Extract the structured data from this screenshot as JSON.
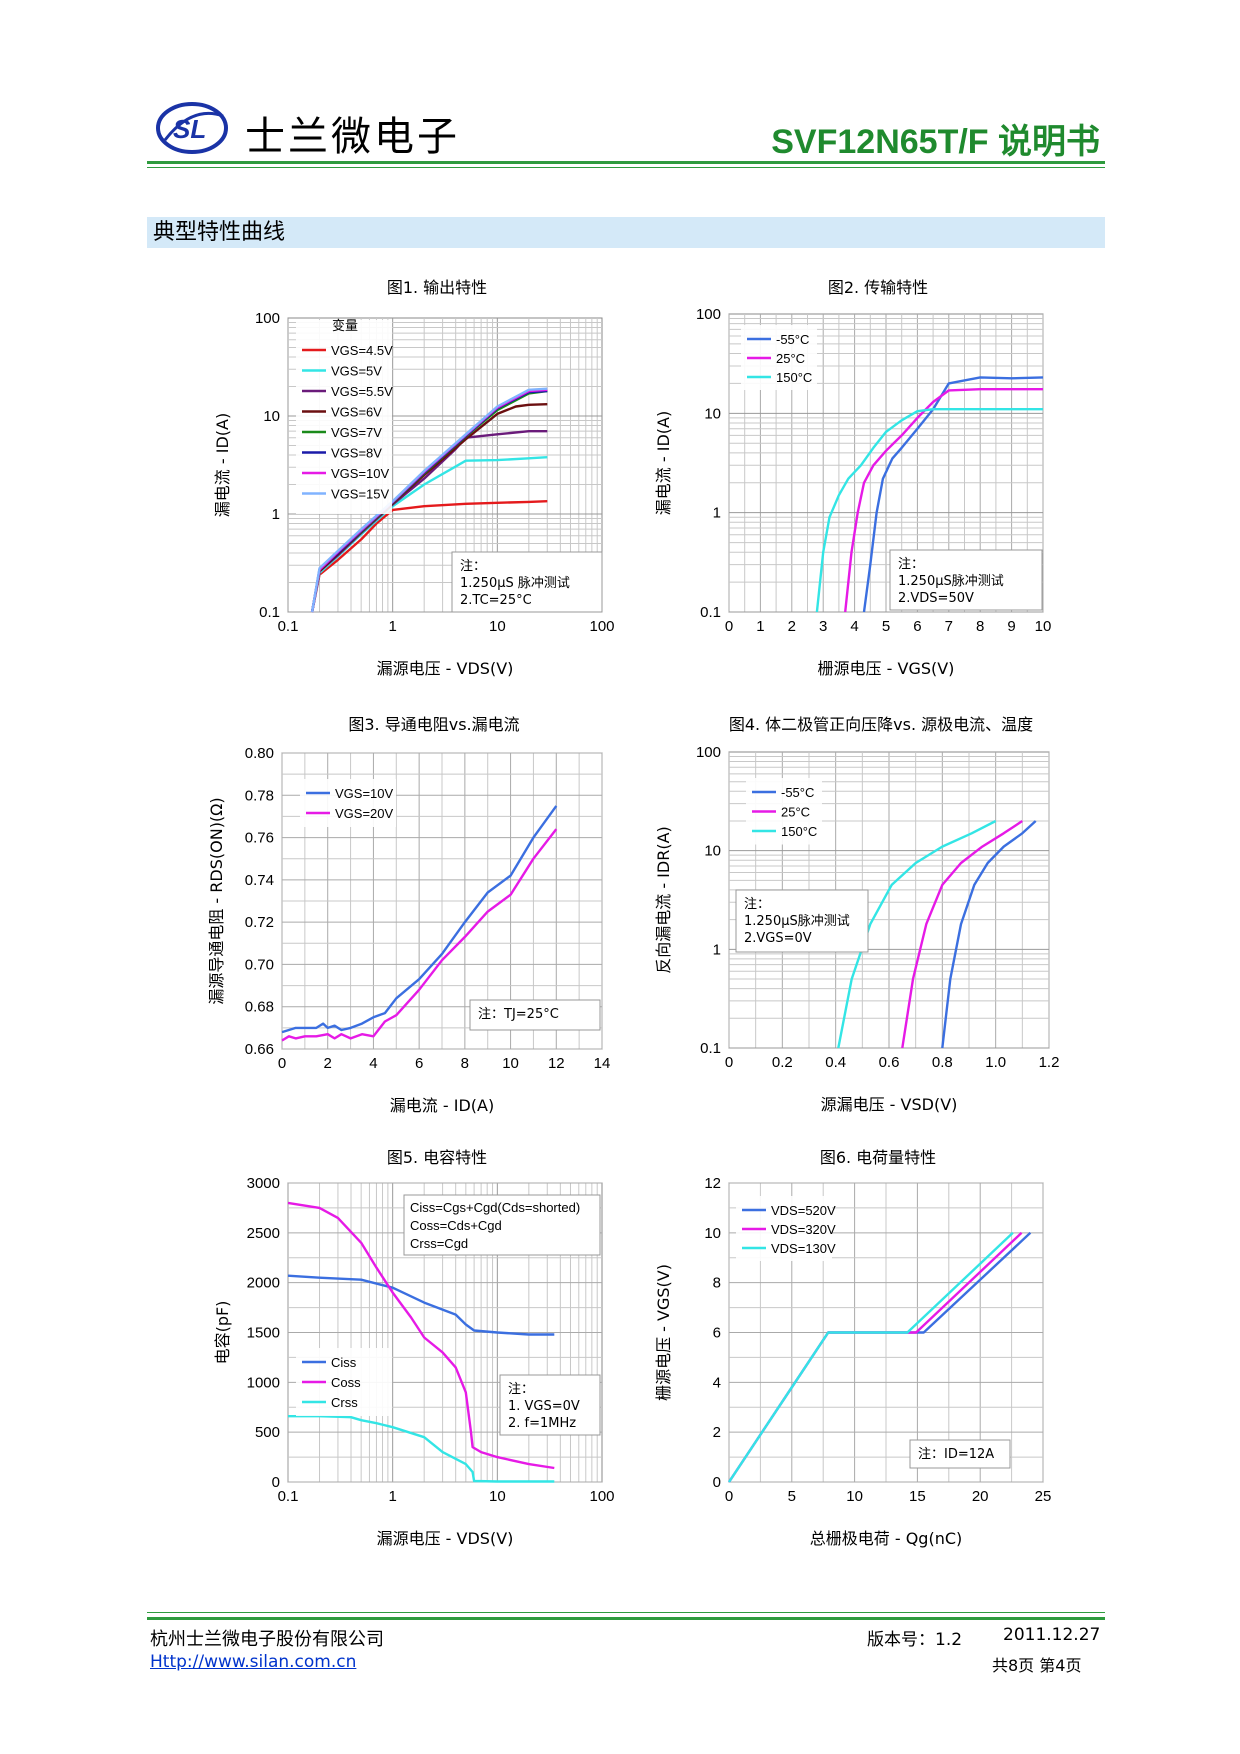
{
  "header": {
    "logo_text": "SL",
    "company": "士兰微电子",
    "doc_title": "SVF12N65T/F 说明书",
    "colors": {
      "green": "#1f8a2e",
      "logo_blue": "#1a33a6"
    }
  },
  "section_title": "典型特性曲线",
  "chart_data": [
    {
      "id": "fig1",
      "type": "line",
      "title": "图1. 输出特性",
      "xlabel": "漏源电压 - VDS(V)",
      "ylabel": "漏电流 - ID(A)",
      "xscale": "log",
      "yscale": "log",
      "xlim": [
        0.1,
        100
      ],
      "ylim": [
        0.1,
        100
      ],
      "xticks": [
        "0.1",
        "1",
        "10",
        "100"
      ],
      "yticks": [
        "0.1",
        "1",
        "10",
        "100"
      ],
      "legend_title": "变量",
      "series": [
        {
          "name": "VGS=4.5V",
          "color": "#e41a1c",
          "x": [
            0.17,
            0.2,
            0.3,
            0.5,
            0.7,
            1,
            2,
            5,
            10,
            20,
            30
          ],
          "y": [
            0.1,
            0.24,
            0.34,
            0.55,
            0.8,
            1.1,
            1.2,
            1.27,
            1.3,
            1.33,
            1.35
          ]
        },
        {
          "name": "VGS=5V",
          "color": "#33e5e5",
          "x": [
            0.17,
            0.2,
            0.3,
            0.5,
            1,
            2,
            5,
            10,
            20,
            30
          ],
          "y": [
            0.1,
            0.25,
            0.37,
            0.62,
            1.2,
            2.0,
            3.5,
            3.55,
            3.7,
            3.8
          ]
        },
        {
          "name": "VGS=5.5V",
          "color": "#6a1b7a",
          "x": [
            0.17,
            0.2,
            0.3,
            0.5,
            1,
            2,
            4,
            5,
            10,
            20,
            30
          ],
          "y": [
            0.1,
            0.26,
            0.38,
            0.64,
            1.25,
            2.3,
            4.6,
            6.0,
            6.5,
            7.0,
            7.0
          ]
        },
        {
          "name": "VGS=6V",
          "color": "#6b0f10",
          "x": [
            0.17,
            0.2,
            0.3,
            0.5,
            1,
            2,
            5,
            10,
            15,
            20,
            30
          ],
          "y": [
            0.1,
            0.26,
            0.39,
            0.65,
            1.28,
            2.5,
            5.8,
            10.5,
            12.5,
            13,
            13.2
          ]
        },
        {
          "name": "VGS=7V",
          "color": "#1a8a1a",
          "x": [
            0.17,
            0.2,
            0.3,
            0.5,
            1,
            2,
            5,
            10,
            20,
            30
          ],
          "y": [
            0.1,
            0.27,
            0.4,
            0.66,
            1.3,
            2.6,
            6.2,
            11.5,
            17,
            18
          ]
        },
        {
          "name": "VGS=8V",
          "color": "#1a1aa8",
          "x": [
            0.17,
            0.2,
            0.3,
            0.5,
            1,
            2,
            5,
            10,
            20,
            30
          ],
          "y": [
            0.1,
            0.27,
            0.4,
            0.67,
            1.32,
            2.65,
            6.3,
            12,
            17.5,
            18
          ]
        },
        {
          "name": "VGS=10V",
          "color": "#e61ae6",
          "x": [
            0.17,
            0.2,
            0.3,
            0.5,
            1,
            2,
            5,
            10,
            20,
            30
          ],
          "y": [
            0.1,
            0.27,
            0.41,
            0.68,
            1.33,
            2.7,
            6.4,
            12.2,
            18,
            18.5
          ]
        },
        {
          "name": "VGS=15V",
          "color": "#80b3ff",
          "x": [
            0.17,
            0.2,
            0.3,
            0.5,
            1,
            2,
            5,
            10,
            20,
            30
          ],
          "y": [
            0.1,
            0.28,
            0.42,
            0.7,
            1.35,
            2.75,
            6.5,
            12.5,
            18.5,
            19
          ]
        }
      ],
      "note": [
        "注：",
        "1.250μS 脉冲测试",
        "2.TC=25°C"
      ]
    },
    {
      "id": "fig2",
      "type": "line",
      "title": "图2. 传输特性",
      "xlabel": "栅源电压 - VGS(V)",
      "ylabel": "漏电流 - ID(A)",
      "xscale": "linear",
      "yscale": "log",
      "xlim": [
        0,
        10
      ],
      "ylim": [
        0.1,
        100
      ],
      "xticks": [
        "0",
        "1",
        "2",
        "3",
        "4",
        "5",
        "6",
        "7",
        "8",
        "9",
        "10"
      ],
      "yticks": [
        "0.1",
        "1",
        "10",
        "100"
      ],
      "series": [
        {
          "name": "-55°C",
          "color": "#3b6fe0",
          "x": [
            4.3,
            4.5,
            4.7,
            4.9,
            5.2,
            5.5,
            6,
            6.5,
            7,
            8,
            9,
            10
          ],
          "y": [
            0.1,
            0.3,
            1,
            2.2,
            3.5,
            4.5,
            7,
            11,
            20,
            23,
            22.5,
            23
          ]
        },
        {
          "name": "25°C",
          "color": "#e61ae6",
          "x": [
            3.7,
            3.9,
            4.1,
            4.3,
            4.6,
            5,
            5.5,
            6,
            6.5,
            7,
            8,
            9,
            10
          ],
          "y": [
            0.1,
            0.4,
            1,
            2,
            3,
            4.2,
            6,
            9,
            13,
            17,
            17.5,
            17.5,
            17.5
          ]
        },
        {
          "name": "150°C",
          "color": "#33e5e5",
          "x": [
            2.8,
            3,
            3.2,
            3.5,
            3.8,
            4.2,
            4.6,
            5,
            5.5,
            6,
            6.5,
            7,
            8,
            9,
            10
          ],
          "y": [
            0.1,
            0.4,
            0.9,
            1.5,
            2.2,
            3,
            4.5,
            6.5,
            8.5,
            10.5,
            11,
            11,
            11,
            11,
            11
          ]
        }
      ],
      "note": [
        "注：",
        "1.250μS脉冲测试",
        "2.VDS=50V"
      ]
    },
    {
      "id": "fig3",
      "type": "line",
      "title": "图3. 导通电阻vs.漏电流",
      "xlabel": "漏电流 - ID(A)",
      "ylabel": "漏源导通电阻 - RDS(ON)(Ω)",
      "xscale": "linear",
      "yscale": "linear",
      "xlim": [
        0,
        14
      ],
      "ylim": [
        0.66,
        0.8
      ],
      "xticks": [
        "0",
        "2",
        "4",
        "6",
        "8",
        "10",
        "12",
        "14"
      ],
      "yticks": [
        "0.66",
        "0.68",
        "0.70",
        "0.72",
        "0.74",
        "0.76",
        "0.78",
        "0.80"
      ],
      "series": [
        {
          "name": "VGS=10V",
          "color": "#3b6fe0",
          "x": [
            0,
            0.3,
            0.6,
            1,
            1.5,
            1.8,
            2,
            2.3,
            2.6,
            3,
            3.5,
            4,
            4.5,
            5,
            6,
            7,
            8,
            9,
            10,
            11,
            12
          ],
          "y": [
            0.668,
            0.669,
            0.67,
            0.67,
            0.67,
            0.672,
            0.67,
            0.671,
            0.669,
            0.67,
            0.672,
            0.675,
            0.677,
            0.684,
            0.693,
            0.705,
            0.72,
            0.734,
            0.742,
            0.76,
            0.775
          ]
        },
        {
          "name": "VGS=20V",
          "color": "#e61ae6",
          "x": [
            0,
            0.3,
            0.6,
            1,
            1.5,
            2,
            2.3,
            2.6,
            3,
            3.5,
            4,
            4.5,
            5,
            6,
            7,
            8,
            9,
            10,
            11,
            12
          ],
          "y": [
            0.664,
            0.666,
            0.665,
            0.666,
            0.666,
            0.667,
            0.665,
            0.667,
            0.665,
            0.667,
            0.666,
            0.673,
            0.676,
            0.688,
            0.702,
            0.713,
            0.725,
            0.733,
            0.75,
            0.764
          ]
        }
      ],
      "note": [
        "注：TJ=25°C"
      ]
    },
    {
      "id": "fig4",
      "type": "line",
      "title": "图4. 体二极管正向压降vs. 源极电流、温度",
      "xlabel": "源漏电压 - VSD(V)",
      "ylabel": "反向漏电流 - IDR(A)",
      "xscale": "linear",
      "yscale": "log",
      "xlim": [
        0,
        1.2
      ],
      "ylim": [
        0.1,
        100
      ],
      "xticks": [
        "0",
        "0.2",
        "0.4",
        "0.6",
        "0.8",
        "1.0",
        "1.2"
      ],
      "yticks": [
        "0.1",
        "1",
        "10",
        "100"
      ],
      "series": [
        {
          "name": "-55°C",
          "color": "#3b6fe0",
          "x": [
            0.8,
            0.83,
            0.87,
            0.92,
            0.97,
            1.03,
            1.1,
            1.15
          ],
          "y": [
            0.1,
            0.5,
            1.8,
            4.5,
            7.5,
            11,
            15,
            20
          ]
        },
        {
          "name": "25°C",
          "color": "#e61ae6",
          "x": [
            0.65,
            0.69,
            0.74,
            0.8,
            0.87,
            0.95,
            1.03,
            1.1
          ],
          "y": [
            0.1,
            0.5,
            1.8,
            4.5,
            7.5,
            11,
            15,
            20
          ]
        },
        {
          "name": "150°C",
          "color": "#33e5e5",
          "x": [
            0.41,
            0.46,
            0.53,
            0.61,
            0.7,
            0.8,
            0.91,
            1.0
          ],
          "y": [
            0.1,
            0.5,
            1.8,
            4.5,
            7.5,
            11,
            15,
            20
          ]
        }
      ],
      "note": [
        "注：",
        "1.250μS脉冲测试",
        "2.VGS=0V"
      ]
    },
    {
      "id": "fig5",
      "type": "line",
      "title": "图5. 电容特性",
      "xlabel": "漏源电压 - VDS(V)",
      "ylabel": "电容(pF)",
      "xscale": "log",
      "yscale": "linear",
      "xlim": [
        0.1,
        100
      ],
      "ylim": [
        0,
        3000
      ],
      "xticks": [
        "0.1",
        "1",
        "10",
        "100"
      ],
      "yticks": [
        "0",
        "500",
        "1000",
        "1500",
        "2000",
        "2500",
        "3000"
      ],
      "series": [
        {
          "name": "Ciss",
          "color": "#3b6fe0",
          "x": [
            0.1,
            0.2,
            0.5,
            1,
            2,
            4,
            5,
            6,
            10,
            20,
            35
          ],
          "y": [
            2070,
            2050,
            2030,
            1950,
            1800,
            1680,
            1580,
            1520,
            1500,
            1480,
            1480
          ]
        },
        {
          "name": "Coss",
          "color": "#e61ae6",
          "x": [
            0.1,
            0.2,
            0.3,
            0.5,
            0.7,
            1,
            1.5,
            2,
            3,
            4,
            5,
            5.6,
            5.8,
            7,
            10,
            20,
            35
          ],
          "y": [
            2800,
            2750,
            2650,
            2400,
            2150,
            1900,
            1650,
            1450,
            1300,
            1150,
            900,
            500,
            350,
            300,
            250,
            180,
            140
          ]
        },
        {
          "name": "Crss",
          "color": "#33e5e5",
          "x": [
            0.1,
            0.2,
            0.4,
            0.5,
            0.7,
            1,
            2,
            3,
            5,
            5.8,
            6,
            10,
            35
          ],
          "y": [
            660,
            660,
            650,
            620,
            590,
            550,
            450,
            300,
            180,
            100,
            10,
            5,
            5
          ]
        }
      ],
      "legend_top": [
        "Ciss=Cgs+Cgd(Cds=shorted)",
        "Coss=Cds+Cgd",
        "Crss=Cgd"
      ],
      "note": [
        "注：",
        "1. VGS=0V",
        "2. f=1MHz"
      ]
    },
    {
      "id": "fig6",
      "type": "line",
      "title": "图6. 电荷量特性",
      "xlabel": "总栅极电荷 - Qg(nC)",
      "ylabel": "栅源电压 - VGS(V)",
      "xscale": "linear",
      "yscale": "linear",
      "xlim": [
        0,
        25
      ],
      "ylim": [
        0,
        12
      ],
      "xticks": [
        "0",
        "5",
        "10",
        "15",
        "20",
        "25"
      ],
      "yticks": [
        "0",
        "2",
        "4",
        "6",
        "8",
        "10",
        "12"
      ],
      "series": [
        {
          "name": "VDS=520V",
          "color": "#3b6fe0",
          "x": [
            0,
            7.9,
            15.5,
            24
          ],
          "y": [
            0,
            6,
            6,
            10
          ]
        },
        {
          "name": "VDS=320V",
          "color": "#e61ae6",
          "x": [
            0,
            7.9,
            14.9,
            23.3
          ],
          "y": [
            0,
            6,
            6,
            10
          ]
        },
        {
          "name": "VDS=130V",
          "color": "#33e5e5",
          "x": [
            0,
            7.9,
            14.2,
            22.6
          ],
          "y": [
            0,
            6,
            6,
            10
          ]
        }
      ],
      "note": [
        "注：ID=12A"
      ]
    }
  ],
  "footer": {
    "company": "杭州士兰微电子股份有限公司",
    "url": "Http://www.silan.com.cn",
    "version_label": "版本号：1.2",
    "date": "2011.12.27",
    "pages": "共8页  第4页"
  }
}
